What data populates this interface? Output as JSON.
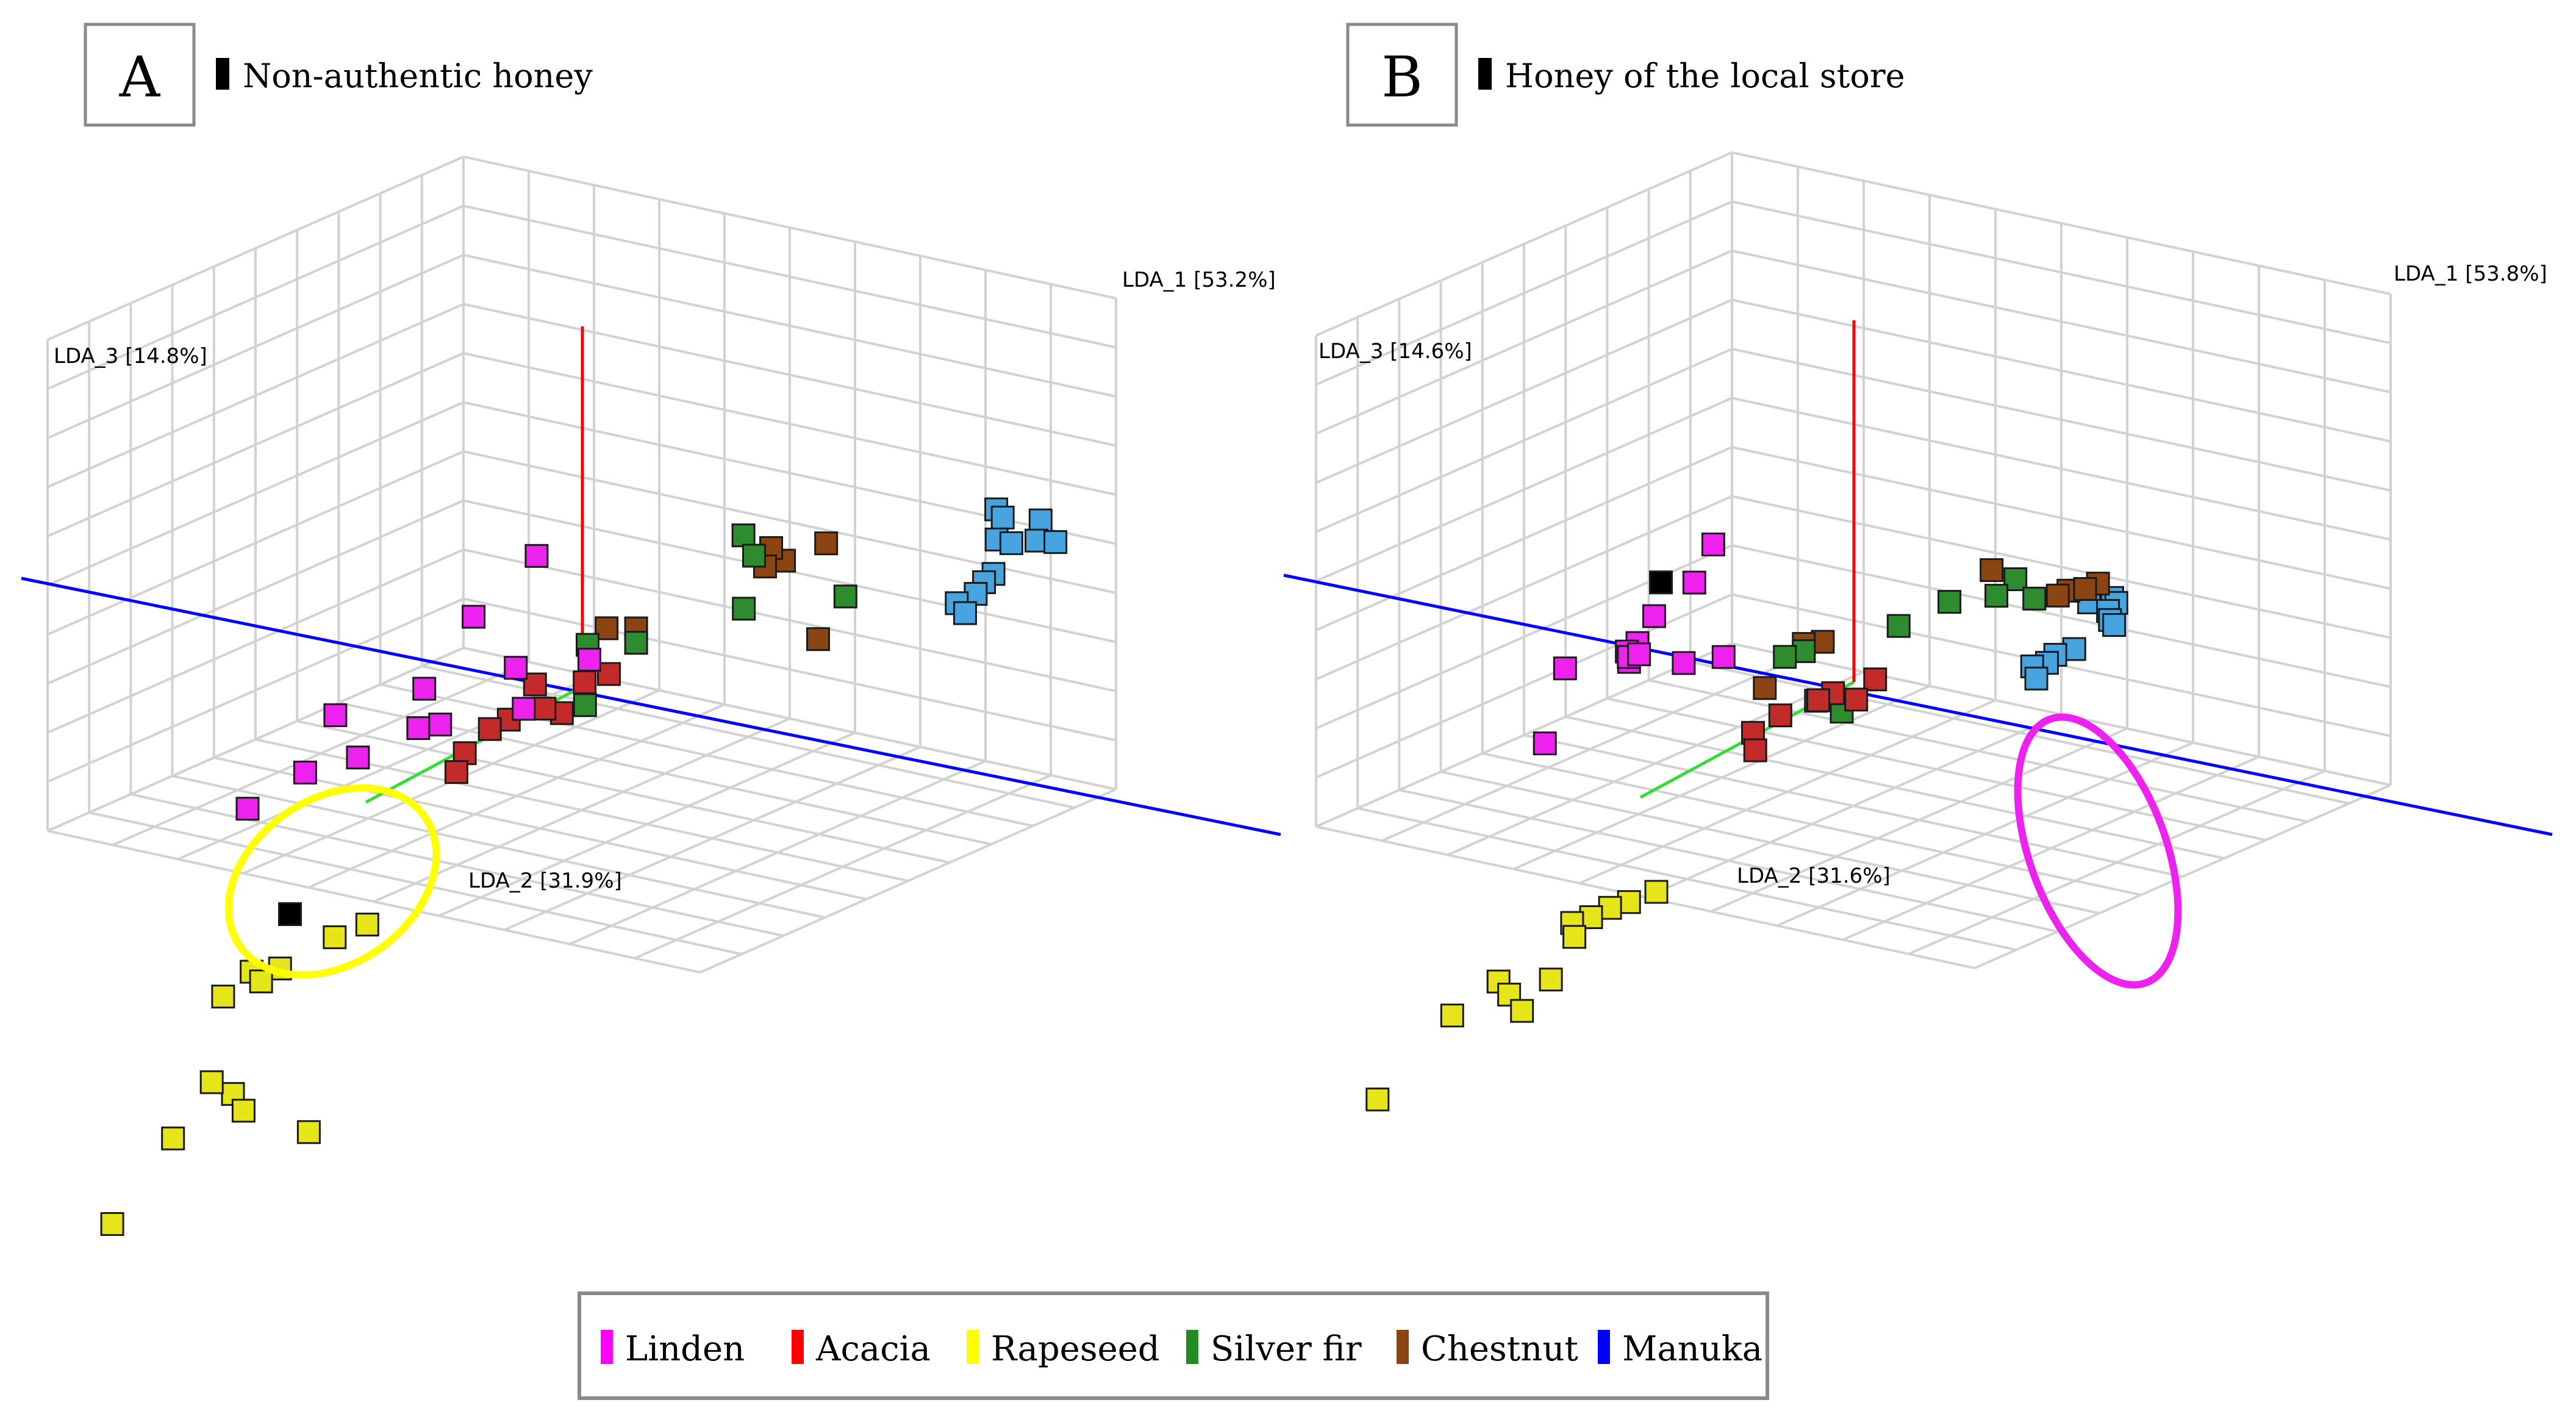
{
  "chart_data": [
    {
      "type": "scatter3d",
      "panel_label": "A",
      "title": "Non-authentic honey",
      "axes": {
        "x_label": "LDA_1 [53.2%]",
        "y_label": "LDA_2 [31.9%]",
        "z_label": "LDA_3 [14.8%]"
      },
      "highlight": {
        "group": "Rapeseed",
        "color": "#ffff00"
      },
      "series": [
        {
          "name": "Manuka",
          "color": "#47a4df",
          "points": [
            [
              0.78,
              0.0,
              0.74
            ],
            [
              0.8,
              0.01,
              0.73
            ],
            [
              0.84,
              -0.03,
              0.71
            ],
            [
              0.82,
              0.05,
              0.7
            ],
            [
              0.84,
              0.04,
              0.69
            ],
            [
              0.84,
              -0.02,
              0.66
            ],
            [
              0.86,
              -0.04,
              0.65
            ],
            [
              0.83,
              0.07,
              0.62
            ],
            [
              0.82,
              0.08,
              0.6
            ],
            [
              0.82,
              0.1,
              0.58
            ],
            [
              0.8,
              0.12,
              0.56
            ],
            [
              0.8,
              0.1,
              0.52
            ]
          ]
        },
        {
          "name": "Chestnut",
          "color": "#8b4513",
          "points": [
            [
              0.42,
              -0.05,
              0.5
            ],
            [
              0.38,
              0.0,
              0.47
            ],
            [
              0.34,
              -0.02,
              0.48
            ],
            [
              0.36,
              0.02,
              0.46
            ],
            [
              0.18,
              0.1,
              0.28
            ],
            [
              0.14,
              0.12,
              0.28
            ],
            [
              0.46,
              0.02,
              0.29
            ]
          ]
        },
        {
          "name": "Silver fir",
          "color": "#2e8b2e",
          "points": [
            [
              0.28,
              -0.03,
              0.49
            ],
            [
              0.3,
              -0.03,
              0.44
            ],
            [
              0.48,
              -0.02,
              0.39
            ],
            [
              0.32,
              0.02,
              0.33
            ],
            [
              0.18,
              0.1,
              0.24
            ],
            [
              0.12,
              0.14,
              0.24
            ],
            [
              0.06,
              0.07,
              0.01
            ]
          ]
        },
        {
          "name": "Acacia",
          "color": "#c32a2a",
          "points": [
            [
              0.05,
              0.0,
              0.05
            ],
            [
              0.02,
              0.02,
              0.03
            ],
            [
              0.04,
              0.1,
              0.0
            ],
            [
              -0.05,
              0.05,
              0.02
            ],
            [
              -0.04,
              0.04,
              -0.05
            ],
            [
              -0.06,
              0.1,
              -0.05
            ],
            [
              -0.08,
              0.12,
              -0.07
            ],
            [
              -0.08,
              0.18,
              -0.1
            ],
            [
              -0.08,
              0.2,
              -0.14
            ]
          ]
        },
        {
          "name": "Rapeseed",
          "color": "#e5e51a",
          "points": [
            [
              0.13,
              0.68,
              -0.2
            ],
            [
              0.1,
              0.72,
              -0.22
            ],
            [
              0.06,
              0.8,
              -0.27
            ],
            [
              0.03,
              0.83,
              -0.27
            ],
            [
              0.0,
              0.86,
              -0.33
            ],
            [
              0.04,
              0.82,
              -0.3
            ],
            [
              0.05,
              0.9,
              -0.56
            ],
            [
              0.01,
              0.9,
              -0.54
            ],
            [
              0.07,
              0.9,
              -0.6
            ],
            [
              0.0,
              0.98,
              -0.65
            ],
            [
              0.13,
              0.82,
              -0.69
            ],
            [
              -0.02,
              1.1,
              -0.82
            ]
          ]
        },
        {
          "name": "Linden",
          "color": "#ee22ee",
          "points": [
            [
              -0.48,
              -0.5,
              -0.1
            ],
            [
              -0.52,
              -0.4,
              -0.22
            ],
            [
              -0.55,
              -0.32,
              -0.38
            ],
            [
              -0.48,
              -0.45,
              -0.38
            ],
            [
              -0.42,
              -0.55,
              -0.4
            ],
            [
              -0.52,
              -0.32,
              -0.47
            ],
            [
              -0.62,
              -0.25,
              -0.55
            ],
            [
              -0.68,
              -0.2,
              -0.58
            ],
            [
              -0.52,
              -0.52,
              -0.55
            ],
            [
              -0.64,
              -0.42,
              -0.58
            ],
            [
              -0.82,
              -0.45,
              -0.62
            ],
            [
              -0.82,
              -0.24,
              -0.75
            ]
          ]
        },
        {
          "name": "Non-authentic honey",
          "color": "#000000",
          "points": [
            [
              0.0,
              0.7,
              -0.2
            ]
          ]
        }
      ]
    },
    {
      "type": "scatter3d",
      "panel_label": "B",
      "title": "Honey of the local store",
      "axes": {
        "x_label": "LDA_1 [53.8%]",
        "y_label": "LDA_2 [31.6%]",
        "z_label": "LDA_3 [14.6%]"
      },
      "highlight": {
        "group": "Linden",
        "color": "#ee22ee"
      },
      "series": [
        {
          "name": "Manuka",
          "color": "#47a4df",
          "points": [
            [
              0.62,
              0.24,
              0.6
            ],
            [
              0.64,
              0.25,
              0.58
            ],
            [
              0.66,
              0.22,
              0.58
            ],
            [
              0.66,
              0.21,
              0.56
            ],
            [
              0.66,
              0.23,
              0.55
            ],
            [
              0.64,
              0.2,
              0.5
            ],
            [
              0.64,
              0.19,
              0.48
            ],
            [
              0.62,
              0.26,
              0.45
            ],
            [
              0.6,
              0.28,
              0.44
            ],
            [
              0.6,
              0.3,
              0.43
            ],
            [
              0.58,
              0.31,
              0.42
            ],
            [
              0.58,
              0.3,
              0.38
            ]
          ]
        },
        {
          "name": "Chestnut",
          "color": "#8b4513",
          "points": [
            [
              0.46,
              0.0,
              0.42
            ],
            [
              0.42,
              0.02,
              0.4
            ],
            [
              0.4,
              0.02,
              0.38
            ],
            [
              0.42,
              -0.02,
              0.38
            ],
            [
              0.22,
              -0.05,
              0.35
            ],
            [
              0.02,
              0.1,
              0.18
            ],
            [
              0.0,
              0.12,
              0.18
            ],
            [
              -0.05,
              0.15,
              0.06
            ]
          ]
        },
        {
          "name": "Silver fir",
          "color": "#2e8b2e",
          "points": [
            [
              0.32,
              0.02,
              0.4
            ],
            [
              0.3,
              0.04,
              0.36
            ],
            [
              0.34,
              0.0,
              0.34
            ],
            [
              0.18,
              0.0,
              0.28
            ],
            [
              0.1,
              0.02,
              0.2
            ],
            [
              0.0,
              0.12,
              0.16
            ],
            [
              -0.02,
              0.14,
              0.15
            ],
            [
              0.04,
              0.08,
              -0.02
            ]
          ]
        },
        {
          "name": "Acacia",
          "color": "#c32a2a",
          "points": [
            [
              0.04,
              0.0,
              0.02
            ],
            [
              0.0,
              0.05,
              0.0
            ],
            [
              0.02,
              0.02,
              -0.03
            ],
            [
              -0.04,
              0.04,
              -0.04
            ],
            [
              -0.02,
              0.06,
              -0.02
            ],
            [
              -0.06,
              0.1,
              -0.05
            ],
            [
              -0.08,
              0.14,
              -0.08
            ],
            [
              -0.06,
              0.16,
              -0.11
            ]
          ]
        },
        {
          "name": "Rapeseed",
          "color": "#e5e51a",
          "points": [
            [
              0.1,
              0.6,
              -0.18
            ],
            [
              0.08,
              0.64,
              -0.19
            ],
            [
              0.06,
              0.66,
              -0.2
            ],
            [
              0.04,
              0.68,
              -0.22
            ],
            [
              0.02,
              0.7,
              -0.23
            ],
            [
              0.04,
              0.72,
              -0.25
            ],
            [
              -0.04,
              0.8,
              -0.35
            ],
            [
              -0.02,
              0.8,
              -0.38
            ],
            [
              0.02,
              0.82,
              -0.4
            ],
            [
              -0.08,
              0.86,
              -0.42
            ],
            [
              -0.02,
              0.7,
              -0.4
            ],
            [
              -0.15,
              0.95,
              -0.62
            ]
          ]
        },
        {
          "name": "Linden",
          "color": "#ee22ee",
          "points": [
            [
              -0.58,
              -0.4,
              -0.05
            ],
            [
              -0.6,
              -0.38,
              -0.15
            ],
            [
              -0.66,
              -0.36,
              -0.25
            ],
            [
              -0.66,
              -0.32,
              -0.3
            ],
            [
              -0.68,
              -0.32,
              -0.33
            ],
            [
              -0.66,
              -0.3,
              -0.34
            ],
            [
              -0.62,
              -0.38,
              -0.38
            ],
            [
              -0.7,
              -0.35,
              -0.37
            ],
            [
              -0.72,
              -0.4,
              -0.4
            ],
            [
              -0.6,
              -0.45,
              -0.4
            ],
            [
              -0.82,
              -0.35,
              -0.44
            ],
            [
              -0.74,
              -0.2,
              -0.53
            ]
          ]
        },
        {
          "name": "Honey of the local store",
          "color": "#000000",
          "points": [
            [
              -0.6,
              -0.3,
              -0.1
            ]
          ]
        }
      ]
    }
  ],
  "legend": [
    {
      "label": "Linden",
      "color": "#ff00ff"
    },
    {
      "label": "Acacia",
      "color": "#ff0000"
    },
    {
      "label": "Rapeseed",
      "color": "#ffff00"
    },
    {
      "label": "Silver fir",
      "color": "#228b22"
    },
    {
      "label": "Chestnut",
      "color": "#8b4513"
    },
    {
      "label": "Manuka",
      "color": "#0000ff"
    }
  ],
  "colors": {
    "axis_1": "#0000ff",
    "axis_2": "#33dd33",
    "axis_3": "#ff0000",
    "grid": "#d2d2d2",
    "frame": "#8a8a8a"
  }
}
